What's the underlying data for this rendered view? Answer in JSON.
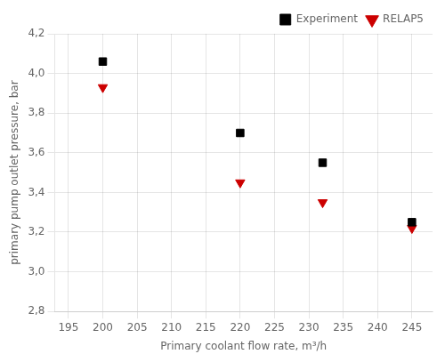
{
  "chart_data": {
    "type": "scatter",
    "xlabel": "Primary coolant flow rate, m³/h",
    "ylabel": "primary pump outlet pressure, bar",
    "series": [
      {
        "name": "Experiment",
        "color": "#000000",
        "marker": "square",
        "x": [
          200,
          220,
          232,
          245
        ],
        "values": [
          4.06,
          3.7,
          3.55,
          3.25
        ]
      },
      {
        "name": "RELAP5",
        "color": "#cc0000",
        "marker": "triangle_down",
        "x": [
          200,
          220,
          232,
          245
        ],
        "values": [
          3.93,
          3.45,
          3.35,
          3.22
        ]
      }
    ],
    "xlim": [
      193,
      248
    ],
    "ylim": [
      2.8,
      4.2
    ],
    "xticks": [
      195,
      200,
      205,
      210,
      215,
      220,
      225,
      230,
      235,
      240,
      245
    ],
    "yticks": [
      {
        "value": 2.8,
        "label": "2,8"
      },
      {
        "value": 3.0,
        "label": "3,0"
      },
      {
        "value": 3.2,
        "label": "3,2"
      },
      {
        "value": 3.4,
        "label": "3,4"
      },
      {
        "value": 3.6,
        "label": "3,6"
      },
      {
        "value": 3.8,
        "label": "3,8"
      },
      {
        "value": 4.0,
        "label": "4,0"
      },
      {
        "value": 4.2,
        "label": "4,2"
      }
    ],
    "grid": true,
    "legend": "upper right"
  }
}
